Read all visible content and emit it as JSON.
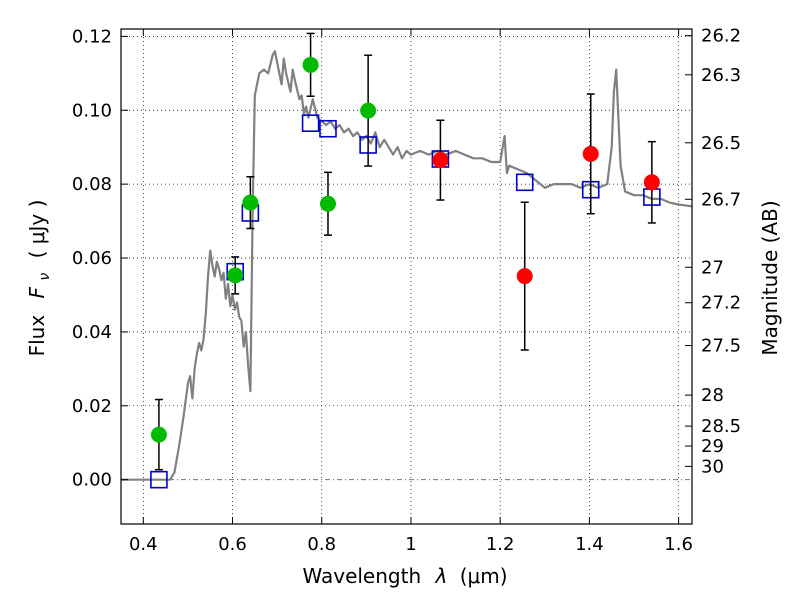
{
  "chart_data": {
    "type": "scatter",
    "xlabel": "Wavelength",
    "xlabel_symbol": "λ",
    "xlabel_unit": "(μm)",
    "ylabel": "Flux",
    "ylabel_symbol": "F",
    "ylabel_subscript": "ν",
    "ylabel_unit": "( μJy )",
    "y2label": "Magnitude (AB)",
    "xlim": [
      0.35,
      1.63
    ],
    "ylim": [
      -0.012,
      0.122
    ],
    "grid": true,
    "grid_style": "dotted",
    "legend": "none",
    "x_ticks": [
      0.4,
      0.6,
      0.8,
      1.0,
      1.2,
      1.4,
      1.6
    ],
    "x_tick_labels": [
      "0.4",
      "0.6",
      "0.8",
      "1",
      "1.2",
      "1.4",
      "1.6"
    ],
    "y_ticks": [
      0.0,
      0.02,
      0.04,
      0.06,
      0.08,
      0.1,
      0.12
    ],
    "y_tick_labels": [
      "0.00",
      "0.02",
      "0.04",
      "0.06",
      "0.08",
      "0.10",
      "0.12"
    ],
    "magnitude_ticks": [
      {
        "label": "26.2",
        "flux": 0.1202
      },
      {
        "label": "26.3",
        "flux": 0.1096
      },
      {
        "label": "26.5",
        "flux": 0.0912
      },
      {
        "label": "26.7",
        "flux": 0.0759
      },
      {
        "label": "27",
        "flux": 0.0575
      },
      {
        "label": "27.2",
        "flux": 0.0479
      },
      {
        "label": "27.5",
        "flux": 0.0363
      },
      {
        "label": "28",
        "flux": 0.0229
      },
      {
        "label": "28.5",
        "flux": 0.0145
      },
      {
        "label": "29",
        "flux": 0.0091
      },
      {
        "label": "30",
        "flux": 0.0036
      }
    ],
    "series": [
      {
        "kind": "model-spectrum",
        "color": "#808080",
        "points": [
          [
            0.35,
            0.0
          ],
          [
            0.45,
            0.0
          ],
          [
            0.46,
            0.0
          ],
          [
            0.47,
            0.002
          ],
          [
            0.48,
            0.009
          ],
          [
            0.49,
            0.017
          ],
          [
            0.5,
            0.026
          ],
          [
            0.505,
            0.028
          ],
          [
            0.51,
            0.022
          ],
          [
            0.515,
            0.03
          ],
          [
            0.52,
            0.034
          ],
          [
            0.525,
            0.037
          ],
          [
            0.53,
            0.035
          ],
          [
            0.535,
            0.038
          ],
          [
            0.54,
            0.045
          ],
          [
            0.545,
            0.055
          ],
          [
            0.55,
            0.062
          ],
          [
            0.555,
            0.058
          ],
          [
            0.56,
            0.055
          ],
          [
            0.565,
            0.059
          ],
          [
            0.57,
            0.057
          ],
          [
            0.575,
            0.054
          ],
          [
            0.58,
            0.056
          ],
          [
            0.585,
            0.049
          ],
          [
            0.59,
            0.053
          ],
          [
            0.595,
            0.047
          ],
          [
            0.6,
            0.05
          ],
          [
            0.605,
            0.046
          ],
          [
            0.61,
            0.048
          ],
          [
            0.615,
            0.044
          ],
          [
            0.62,
            0.043
          ],
          [
            0.625,
            0.036
          ],
          [
            0.63,
            0.04
          ],
          [
            0.635,
            0.031
          ],
          [
            0.64,
            0.024
          ],
          [
            0.645,
            0.072
          ],
          [
            0.65,
            0.104
          ],
          [
            0.66,
            0.11
          ],
          [
            0.67,
            0.111
          ],
          [
            0.68,
            0.11
          ],
          [
            0.69,
            0.115
          ],
          [
            0.695,
            0.116
          ],
          [
            0.7,
            0.113
          ],
          [
            0.71,
            0.107
          ],
          [
            0.715,
            0.114
          ],
          [
            0.72,
            0.11
          ],
          [
            0.73,
            0.105
          ],
          [
            0.735,
            0.111
          ],
          [
            0.74,
            0.108
          ],
          [
            0.75,
            0.103
          ],
          [
            0.755,
            0.104
          ],
          [
            0.76,
            0.099
          ],
          [
            0.765,
            0.101
          ],
          [
            0.77,
            0.098
          ],
          [
            0.78,
            0.103
          ],
          [
            0.79,
            0.098
          ],
          [
            0.8,
            0.097
          ],
          [
            0.81,
            0.096
          ],
          [
            0.82,
            0.097
          ],
          [
            0.83,
            0.095
          ],
          [
            0.84,
            0.096
          ],
          [
            0.85,
            0.094
          ],
          [
            0.86,
            0.095
          ],
          [
            0.87,
            0.093
          ],
          [
            0.88,
            0.094
          ],
          [
            0.89,
            0.092
          ],
          [
            0.9,
            0.093
          ],
          [
            0.91,
            0.091
          ],
          [
            0.92,
            0.094
          ],
          [
            0.93,
            0.09
          ],
          [
            0.94,
            0.092
          ],
          [
            0.95,
            0.09
          ],
          [
            0.96,
            0.088
          ],
          [
            0.97,
            0.09
          ],
          [
            0.98,
            0.087
          ],
          [
            0.99,
            0.089
          ],
          [
            1.0,
            0.088
          ],
          [
            1.02,
            0.089
          ],
          [
            1.04,
            0.088
          ],
          [
            1.06,
            0.089
          ],
          [
            1.08,
            0.088
          ],
          [
            1.1,
            0.089
          ],
          [
            1.12,
            0.088
          ],
          [
            1.14,
            0.087
          ],
          [
            1.16,
            0.087
          ],
          [
            1.18,
            0.086
          ],
          [
            1.2,
            0.086
          ],
          [
            1.21,
            0.093
          ],
          [
            1.215,
            0.083
          ],
          [
            1.22,
            0.085
          ],
          [
            1.24,
            0.084
          ],
          [
            1.26,
            0.083
          ],
          [
            1.28,
            0.081
          ],
          [
            1.3,
            0.079
          ],
          [
            1.32,
            0.08
          ],
          [
            1.34,
            0.08
          ],
          [
            1.36,
            0.08
          ],
          [
            1.38,
            0.079
          ],
          [
            1.4,
            0.08
          ],
          [
            1.42,
            0.079
          ],
          [
            1.44,
            0.08
          ],
          [
            1.45,
            0.09
          ],
          [
            1.455,
            0.105
          ],
          [
            1.46,
            0.111
          ],
          [
            1.465,
            0.098
          ],
          [
            1.47,
            0.085
          ],
          [
            1.48,
            0.078
          ],
          [
            1.5,
            0.077
          ],
          [
            1.52,
            0.077
          ],
          [
            1.54,
            0.076
          ],
          [
            1.56,
            0.076
          ],
          [
            1.58,
            0.075
          ],
          [
            1.6,
            0.0745
          ],
          [
            1.63,
            0.074
          ]
        ]
      },
      {
        "kind": "model-band-flux",
        "marker": "open-square",
        "color": "#0000cc",
        "x": [
          0.435,
          0.606,
          0.64,
          0.775,
          0.814,
          0.904,
          1.066,
          1.255,
          1.403,
          1.54
        ],
        "y": [
          0.0,
          0.0563,
          0.0722,
          0.0965,
          0.095,
          0.0906,
          0.0868,
          0.0805,
          0.0785,
          0.0765
        ]
      },
      {
        "kind": "observed-photometry",
        "marker": "filled-circle",
        "color": "#00bb00",
        "x": [
          0.435,
          0.606,
          0.64,
          0.775,
          0.814,
          0.904
        ],
        "y": [
          0.0122,
          0.0553,
          0.075,
          0.1123,
          0.0747,
          0.0999
        ],
        "err": [
          0.0095,
          0.005,
          0.007,
          0.0085,
          0.0085,
          0.015
        ]
      },
      {
        "kind": "observed-photometry",
        "marker": "filled-circle",
        "color": "#ff0000",
        "x": [
          1.066,
          1.255,
          1.403,
          1.54
        ],
        "y": [
          0.0865,
          0.0551,
          0.0882,
          0.0805
        ],
        "err": [
          0.0108,
          0.02,
          0.0162,
          0.011
        ]
      }
    ]
  }
}
